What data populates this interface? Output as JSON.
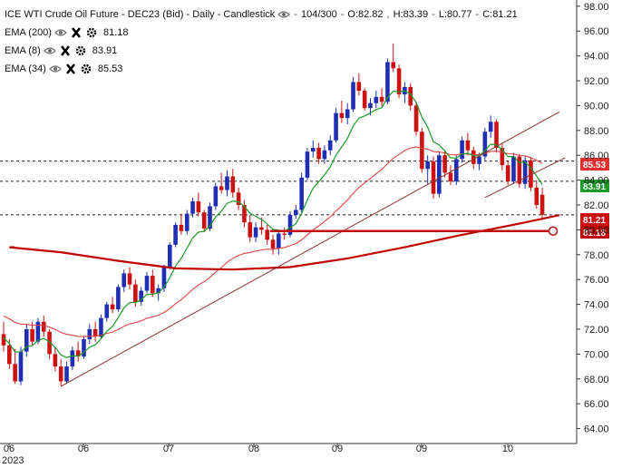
{
  "legend": {
    "title": "ICE WTI Crude Oil Future - DEC23 (Bid) - Daily - Candlestick",
    "bars": "104/300",
    "ohlc": {
      "open": "O:82.82",
      "high": "H:83.39",
      "low": "L:80.77",
      "close": "C:81.21"
    },
    "studies": [
      {
        "label": "EMA (200)",
        "value": "81.18"
      },
      {
        "label": "EMA (8)",
        "value": "83.91"
      },
      {
        "label": "EMA (34)",
        "value": "85.53"
      }
    ]
  },
  "icons": {
    "visible": "eye-icon",
    "remove": "close-icon",
    "settings": "gear-icon"
  },
  "colors": {
    "up": "#1f2fb3",
    "down": "#cc1111",
    "ema8": "#1b9a2a",
    "ema34": "#e04444",
    "ema200": "#c00000",
    "trend": "#8b3030",
    "support": "#c01010"
  },
  "chart_data": {
    "type": "candlestick",
    "y_axis_labels": [
      "98.00",
      "96.00",
      "94.00",
      "92.00",
      "90.00",
      "88.00",
      "86.00",
      "84.00",
      "82.00",
      "80.00",
      "78.00",
      "76.00",
      "74.00",
      "72.00",
      "70.00",
      "68.00",
      "66.00",
      "64.00"
    ],
    "ylim": [
      62.8,
      98.5
    ],
    "x_tick_labels": [
      "06",
      "06",
      "07",
      "08",
      "09",
      "09",
      "10"
    ],
    "x_year_label": "2023",
    "price_badges": [
      {
        "value": "85.53",
        "color": "#e03030"
      },
      {
        "value": "83.91",
        "color": "#1b9a2a"
      },
      {
        "value": "81.21",
        "color": "#cc1111"
      },
      {
        "value": "81.18",
        "color": "#c00000"
      }
    ],
    "dashed_levels": [
      85.53,
      83.91,
      81.21
    ],
    "support_level": 79.9,
    "ohlc": [
      [
        71.6,
        72.6,
        70.2,
        70.7
      ],
      [
        70.7,
        71.2,
        68.8,
        69.2
      ],
      [
        69.2,
        70.4,
        67.6,
        67.8
      ],
      [
        67.8,
        70.6,
        67.5,
        70.2
      ],
      [
        70.2,
        72.4,
        69.8,
        72.0
      ],
      [
        72.0,
        72.6,
        70.7,
        71.0
      ],
      [
        71.0,
        72.9,
        70.8,
        72.6
      ],
      [
        72.6,
        73.1,
        71.4,
        71.8
      ],
      [
        71.8,
        72.0,
        69.6,
        70.0
      ],
      [
        70.0,
        70.6,
        68.6,
        69.0
      ],
      [
        69.0,
        69.6,
        67.4,
        67.8
      ],
      [
        67.8,
        69.4,
        67.6,
        69.0
      ],
      [
        69.0,
        70.6,
        68.7,
        70.3
      ],
      [
        70.3,
        71.0,
        69.4,
        69.8
      ],
      [
        69.8,
        71.5,
        69.6,
        71.2
      ],
      [
        71.2,
        72.4,
        70.8,
        72.0
      ],
      [
        72.0,
        72.6,
        71.0,
        71.4
      ],
      [
        71.4,
        73.2,
        71.2,
        72.9
      ],
      [
        72.9,
        74.2,
        72.6,
        74.0
      ],
      [
        74.0,
        74.6,
        73.3,
        73.6
      ],
      [
        73.6,
        75.6,
        73.4,
        75.4
      ],
      [
        75.4,
        76.8,
        75.0,
        76.5
      ],
      [
        76.5,
        77.0,
        75.2,
        75.6
      ],
      [
        75.6,
        76.0,
        73.8,
        74.2
      ],
      [
        74.2,
        75.4,
        73.9,
        75.1
      ],
      [
        75.1,
        76.6,
        74.9,
        76.3
      ],
      [
        76.3,
        76.8,
        74.6,
        74.9
      ],
      [
        74.9,
        75.6,
        74.3,
        75.3
      ],
      [
        75.3,
        77.2,
        75.0,
        77.0
      ],
      [
        77.0,
        79.0,
        76.8,
        78.8
      ],
      [
        78.8,
        80.6,
        78.6,
        80.4
      ],
      [
        80.4,
        81.3,
        79.6,
        79.9
      ],
      [
        79.9,
        81.6,
        79.6,
        81.3
      ],
      [
        81.3,
        82.6,
        81.0,
        82.3
      ],
      [
        82.3,
        83.0,
        81.1,
        81.4
      ],
      [
        81.4,
        81.6,
        79.8,
        80.1
      ],
      [
        80.1,
        82.2,
        79.9,
        81.9
      ],
      [
        81.9,
        83.8,
        81.6,
        83.5
      ],
      [
        83.5,
        84.6,
        82.9,
        83.2
      ],
      [
        83.2,
        84.8,
        82.7,
        84.3
      ],
      [
        84.3,
        84.9,
        82.6,
        83.0
      ],
      [
        83.0,
        83.4,
        81.6,
        82.0
      ],
      [
        82.0,
        82.4,
        80.2,
        80.6
      ],
      [
        80.6,
        81.2,
        79.0,
        79.4
      ],
      [
        79.4,
        80.6,
        79.0,
        80.2
      ],
      [
        80.2,
        81.0,
        79.6,
        80.0
      ],
      [
        80.0,
        80.4,
        78.8,
        79.2
      ],
      [
        79.2,
        79.6,
        78.0,
        78.5
      ],
      [
        78.5,
        80.0,
        78.0,
        79.7
      ],
      [
        79.7,
        80.2,
        79.2,
        79.6
      ],
      [
        79.6,
        81.5,
        79.4,
        81.2
      ],
      [
        81.2,
        82.0,
        80.9,
        81.6
      ],
      [
        81.6,
        84.6,
        81.4,
        84.2
      ],
      [
        84.2,
        86.6,
        84.0,
        86.3
      ],
      [
        86.3,
        87.2,
        85.8,
        86.6
      ],
      [
        86.6,
        87.0,
        85.3,
        85.7
      ],
      [
        85.7,
        86.8,
        85.3,
        86.4
      ],
      [
        86.4,
        87.6,
        86.0,
        87.2
      ],
      [
        87.2,
        89.8,
        87.0,
        89.4
      ],
      [
        89.4,
        90.4,
        88.6,
        89.0
      ],
      [
        89.0,
        90.2,
        88.5,
        89.7
      ],
      [
        89.7,
        92.3,
        89.5,
        91.9
      ],
      [
        91.9,
        92.6,
        90.8,
        91.2
      ],
      [
        91.2,
        91.4,
        89.6,
        89.8
      ],
      [
        89.8,
        90.6,
        89.2,
        90.2
      ],
      [
        90.2,
        91.2,
        89.8,
        90.7
      ],
      [
        90.7,
        91.4,
        89.9,
        90.3
      ],
      [
        90.3,
        93.8,
        90.1,
        93.5
      ],
      [
        93.5,
        95.0,
        92.7,
        93.0
      ],
      [
        93.0,
        93.3,
        90.6,
        90.9
      ],
      [
        90.9,
        91.9,
        90.2,
        91.5
      ],
      [
        91.5,
        91.8,
        89.6,
        90.0
      ],
      [
        90.0,
        90.3,
        87.6,
        87.9
      ],
      [
        87.9,
        88.2,
        84.6,
        84.9
      ],
      [
        84.9,
        86.0,
        83.6,
        85.5
      ],
      [
        85.5,
        85.9,
        82.5,
        82.9
      ],
      [
        82.9,
        86.3,
        82.6,
        86.0
      ],
      [
        86.0,
        86.4,
        84.2,
        84.6
      ],
      [
        84.6,
        85.2,
        83.6,
        83.9
      ],
      [
        83.9,
        86.0,
        83.6,
        85.7
      ],
      [
        85.7,
        87.5,
        85.4,
        87.2
      ],
      [
        87.2,
        87.8,
        86.0,
        86.4
      ],
      [
        86.4,
        86.7,
        84.9,
        85.3
      ],
      [
        85.3,
        86.2,
        84.8,
        85.9
      ],
      [
        85.9,
        88.2,
        85.6,
        87.9
      ],
      [
        87.9,
        89.2,
        87.4,
        88.7
      ],
      [
        88.7,
        88.9,
        86.2,
        86.6
      ],
      [
        86.6,
        86.9,
        84.8,
        85.2
      ],
      [
        85.2,
        85.5,
        83.6,
        83.9
      ],
      [
        83.9,
        86.2,
        83.7,
        85.9
      ],
      [
        85.9,
        86.1,
        83.4,
        83.7
      ],
      [
        83.7,
        85.9,
        83.3,
        85.6
      ],
      [
        85.6,
        85.8,
        83.1,
        83.4
      ],
      [
        83.4,
        84.0,
        81.7,
        82.0
      ],
      [
        82.82,
        83.39,
        80.77,
        81.21
      ]
    ],
    "ema200": [
      [
        1,
        78.6
      ],
      [
        10,
        78.2
      ],
      [
        20,
        77.5
      ],
      [
        30,
        76.9
      ],
      [
        40,
        76.8
      ],
      [
        50,
        77.0
      ],
      [
        60,
        77.7
      ],
      [
        70,
        78.6
      ],
      [
        80,
        79.6
      ],
      [
        90,
        80.5
      ],
      [
        97,
        81.18
      ]
    ],
    "trendlines": [
      {
        "from": [
          10,
          67.4
        ],
        "to": [
          97,
          89.5
        ]
      },
      {
        "from": [
          84,
          82.6
        ],
        "to": [
          98,
          85.8
        ]
      }
    ]
  }
}
